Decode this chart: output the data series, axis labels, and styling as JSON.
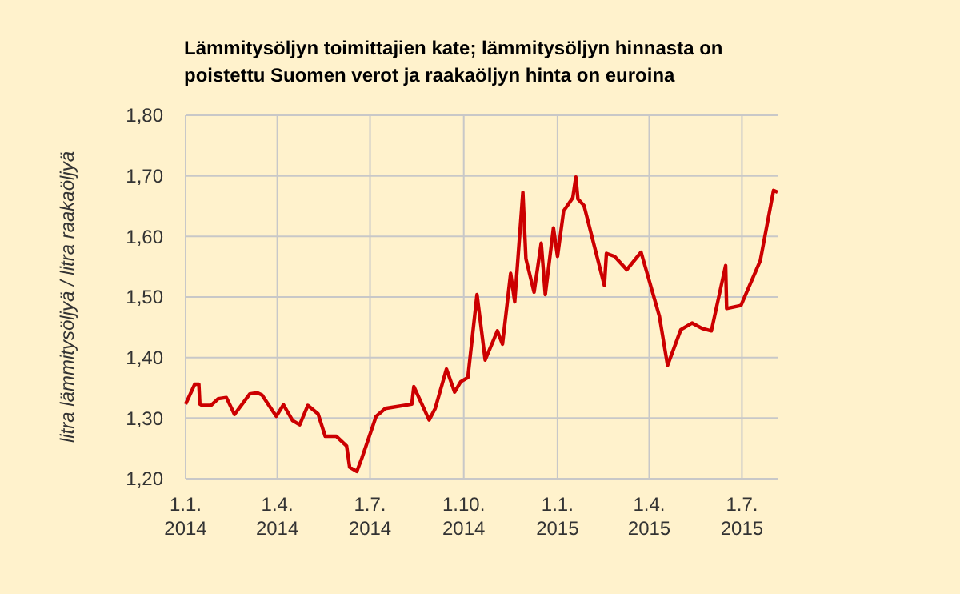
{
  "chart_data": {
    "type": "line",
    "title": "Lämmitysöljyn toimittajien kate; lämmitysöljyn hinnasta on\npoistettu Suomen verot ja raakaöljyn hinta on euroina",
    "ylabel": "litra lämmitysöljyä / litra raakaöljyä",
    "x": [
      "2014-01-01",
      "2014-01-10",
      "2014-01-14",
      "2014-01-15",
      "2014-01-17",
      "2014-01-26",
      "2014-02-02",
      "2014-02-10",
      "2014-02-18",
      "2014-03-05",
      "2014-03-12",
      "2014-03-17",
      "2014-03-31",
      "2014-04-07",
      "2014-04-16",
      "2014-04-23",
      "2014-05-01",
      "2014-05-11",
      "2014-05-18",
      "2014-05-29",
      "2014-06-08",
      "2014-06-11",
      "2014-06-18",
      "2014-06-23",
      "2014-07-07",
      "2014-07-16",
      "2014-08-11",
      "2014-08-13",
      "2014-08-28",
      "2014-09-03",
      "2014-09-14",
      "2014-09-22",
      "2014-09-28",
      "2014-10-05",
      "2014-10-14",
      "2014-10-22",
      "2014-11-03",
      "2014-11-08",
      "2014-11-16",
      "2014-11-20",
      "2014-11-28",
      "2014-12-01",
      "2014-12-09",
      "2014-12-16",
      "2014-12-20",
      "2014-12-28",
      "2015-01-01",
      "2015-01-07",
      "2015-01-16",
      "2015-01-19",
      "2015-01-21",
      "2015-01-27",
      "2015-02-16",
      "2015-02-18",
      "2015-02-26",
      "2015-03-10",
      "2015-03-24",
      "2015-04-11",
      "2015-04-19",
      "2015-05-02",
      "2015-05-13",
      "2015-05-23",
      "2015-06-01",
      "2015-06-15",
      "2015-06-16",
      "2015-06-30",
      "2015-07-19",
      "2015-08-01",
      "2015-08-05"
    ],
    "series": [
      {
        "color": "#cc0000",
        "values": [
          1.323,
          1.356,
          1.356,
          1.323,
          1.321,
          1.321,
          1.332,
          1.334,
          1.306,
          1.34,
          1.342,
          1.338,
          1.303,
          1.322,
          1.296,
          1.289,
          1.321,
          1.307,
          1.27,
          1.27,
          1.254,
          1.219,
          1.212,
          1.234,
          1.303,
          1.316,
          1.323,
          1.352,
          1.297,
          1.316,
          1.381,
          1.343,
          1.36,
          1.367,
          1.504,
          1.396,
          1.444,
          1.422,
          1.539,
          1.492,
          1.673,
          1.563,
          1.508,
          1.589,
          1.504,
          1.614,
          1.567,
          1.642,
          1.664,
          1.698,
          1.662,
          1.651,
          1.519,
          1.572,
          1.567,
          1.545,
          1.574,
          1.468,
          1.387,
          1.446,
          1.457,
          1.448,
          1.444,
          1.552,
          1.481,
          1.486,
          1.56,
          1.676,
          1.673
        ]
      }
    ],
    "xlim": [
      "2014-01-01",
      "2015-08-05"
    ],
    "xticks": [
      {
        "value": "2014-01-01",
        "label": "1.1.\n2014"
      },
      {
        "value": "2014-04-01",
        "label": "1.4.\n2014"
      },
      {
        "value": "2014-07-01",
        "label": "1.7.\n2014"
      },
      {
        "value": "2014-10-01",
        "label": "1.10.\n2014"
      },
      {
        "value": "2015-01-01",
        "label": "1.1.\n2015"
      },
      {
        "value": "2015-04-01",
        "label": "1.4.\n2015"
      },
      {
        "value": "2015-07-01",
        "label": "1.7.\n2015"
      }
    ],
    "ylim": [
      1.2,
      1.8
    ],
    "yticks": [
      {
        "value": 1.2,
        "label": "1,20"
      },
      {
        "value": 1.3,
        "label": "1,30"
      },
      {
        "value": 1.4,
        "label": "1,40"
      },
      {
        "value": 1.5,
        "label": "1,50"
      },
      {
        "value": 1.6,
        "label": "1,60"
      },
      {
        "value": 1.7,
        "label": "1,70"
      },
      {
        "value": 1.8,
        "label": "1,80"
      }
    ],
    "grid": true,
    "marker": "none",
    "line_style": "solid"
  }
}
